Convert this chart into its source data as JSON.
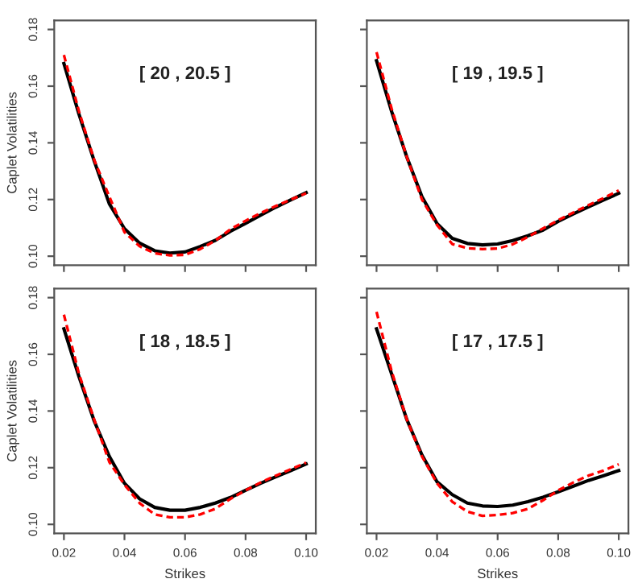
{
  "chart_data": [
    {
      "type": "line",
      "annotations": [
        "[ 20 , 20.5 ]"
      ],
      "ylabel": "Caplet Volatilities",
      "tick_labels": "y",
      "x": [
        0.02,
        0.025,
        0.03,
        0.035,
        0.04,
        0.045,
        0.05,
        0.055,
        0.06,
        0.065,
        0.07,
        0.075,
        0.08,
        0.085,
        0.09,
        0.095,
        0.1
      ],
      "xlim": [
        0.0168,
        0.1032
      ],
      "ylim": [
        0.0968,
        0.1832
      ],
      "xticks": [
        {
          "value": 0.02,
          "label": null
        },
        {
          "value": 0.04,
          "label": null
        },
        {
          "value": 0.06,
          "label": null
        },
        {
          "value": 0.08,
          "label": null
        },
        {
          "value": 0.1,
          "label": null
        }
      ],
      "yticks": [
        {
          "value": 0.1,
          "label": "0.10"
        },
        0.12,
        0.14,
        0.16,
        0.18
      ],
      "series": [
        {
          "color": "#000000",
          "line_style": "solid",
          "values": [
            0.168,
            0.15,
            0.1336,
            0.1185,
            0.1097,
            0.1046,
            0.1019,
            0.1011,
            0.1015,
            0.1034,
            0.1056,
            0.1088,
            0.1116,
            0.1145,
            0.1173,
            0.1199,
            0.1224
          ]
        },
        {
          "color": "#ff0000",
          "line_style": "dashed",
          "values": [
            0.171,
            0.151,
            0.134,
            0.121,
            0.1085,
            0.1035,
            0.101,
            0.1003,
            0.1005,
            0.1025,
            0.1055,
            0.1095,
            0.1125,
            0.1152,
            0.1177,
            0.12,
            0.1222
          ]
        }
      ]
    },
    {
      "type": "line",
      "annotations": [
        "[ 19 , 19.5 ]"
      ],
      "tick_labels": false,
      "x": [
        0.02,
        0.025,
        0.03,
        0.035,
        0.04,
        0.045,
        0.05,
        0.055,
        0.06,
        0.065,
        0.07,
        0.075,
        0.08,
        0.085,
        0.09,
        0.095,
        0.1
      ],
      "xlim": [
        0.0168,
        0.1032
      ],
      "ylim": [
        0.0968,
        0.1832
      ],
      "xticks": [
        {
          "value": 0.02,
          "label": null
        },
        {
          "value": 0.04,
          "label": null
        },
        {
          "value": 0.06,
          "label": null
        },
        {
          "value": 0.08,
          "label": null
        },
        {
          "value": 0.1,
          "label": null
        }
      ],
      "yticks": [
        {
          "value": 0.1,
          "label": null
        },
        {
          "value": 0.12,
          "label": null
        },
        {
          "value": 0.14,
          "label": null
        },
        {
          "value": 0.16,
          "label": null
        },
        {
          "value": 0.18,
          "label": null
        }
      ],
      "series": [
        {
          "color": "#000000",
          "line_style": "solid",
          "values": [
            0.169,
            0.151,
            0.135,
            0.121,
            0.1115,
            0.1063,
            0.1045,
            0.104,
            0.1043,
            0.1055,
            0.1072,
            0.1092,
            0.1123,
            0.1149,
            0.1174,
            0.1198,
            0.1222
          ]
        },
        {
          "color": "#ff0000",
          "line_style": "dashed",
          "values": [
            0.172,
            0.152,
            0.135,
            0.12,
            0.111,
            0.1043,
            0.1028,
            0.1025,
            0.1027,
            0.1042,
            0.1068,
            0.1098,
            0.1127,
            0.1154,
            0.118,
            0.1205,
            0.1232
          ]
        }
      ]
    },
    {
      "type": "line",
      "annotations": [
        "[ 18 , 18.5 ]"
      ],
      "ylabel": "Caplet Volatilities",
      "xlabel": "Strikes",
      "x": [
        0.02,
        0.025,
        0.03,
        0.035,
        0.04,
        0.045,
        0.05,
        0.055,
        0.06,
        0.065,
        0.07,
        0.075,
        0.08,
        0.085,
        0.09,
        0.095,
        0.1
      ],
      "xlim": [
        0.0168,
        0.1032
      ],
      "ylim": [
        0.0968,
        0.1832
      ],
      "xticks": [
        0.02,
        0.04,
        0.06,
        0.08,
        {
          "value": 0.1,
          "label": "0.10"
        }
      ],
      "yticks": [
        {
          "value": 0.1,
          "label": "0.10"
        },
        0.12,
        0.14,
        0.16,
        0.18
      ],
      "series": [
        {
          "color": "#000000",
          "line_style": "solid",
          "values": [
            0.169,
            0.152,
            0.1365,
            0.124,
            0.1145,
            0.109,
            0.106,
            0.105,
            0.105,
            0.106,
            0.1075,
            0.1095,
            0.112,
            0.1145,
            0.1168,
            0.119,
            0.1213
          ]
        },
        {
          "color": "#ff0000",
          "line_style": "dashed",
          "values": [
            0.174,
            0.153,
            0.137,
            0.122,
            0.114,
            0.1075,
            0.1035,
            0.1025,
            0.1025,
            0.1035,
            0.1055,
            0.109,
            0.112,
            0.1148,
            0.1172,
            0.1195,
            0.1218
          ]
        }
      ]
    },
    {
      "type": "line",
      "annotations": [
        "[ 17 , 17.5 ]"
      ],
      "xlabel": "Strikes",
      "tick_labels": "x",
      "x": [
        0.02,
        0.025,
        0.03,
        0.035,
        0.04,
        0.045,
        0.05,
        0.055,
        0.06,
        0.065,
        0.07,
        0.075,
        0.08,
        0.085,
        0.09,
        0.095,
        0.1
      ],
      "xlim": [
        0.0168,
        0.1032
      ],
      "ylim": [
        0.0968,
        0.1832
      ],
      "xticks": [
        0.02,
        0.04,
        0.06,
        0.08,
        {
          "value": 0.1,
          "label": "0.10"
        }
      ],
      "yticks": [
        {
          "value": 0.1,
          "label": null
        },
        {
          "value": 0.12,
          "label": null
        },
        {
          "value": 0.14,
          "label": null
        },
        {
          "value": 0.16,
          "label": null
        },
        {
          "value": 0.18,
          "label": null
        }
      ],
      "series": [
        {
          "color": "#000000",
          "line_style": "solid",
          "values": [
            0.169,
            0.153,
            0.137,
            0.1245,
            0.115,
            0.1105,
            0.1075,
            0.1065,
            0.1063,
            0.1068,
            0.108,
            0.1096,
            0.1115,
            0.1135,
            0.1155,
            0.1172,
            0.119
          ]
        },
        {
          "color": "#ff0000",
          "line_style": "dashed",
          "values": [
            0.175,
            0.154,
            0.137,
            0.124,
            0.1145,
            0.108,
            0.1045,
            0.103,
            0.1033,
            0.104,
            0.1055,
            0.1085,
            0.112,
            0.1148,
            0.1172,
            0.119,
            0.1212
          ]
        }
      ]
    }
  ]
}
